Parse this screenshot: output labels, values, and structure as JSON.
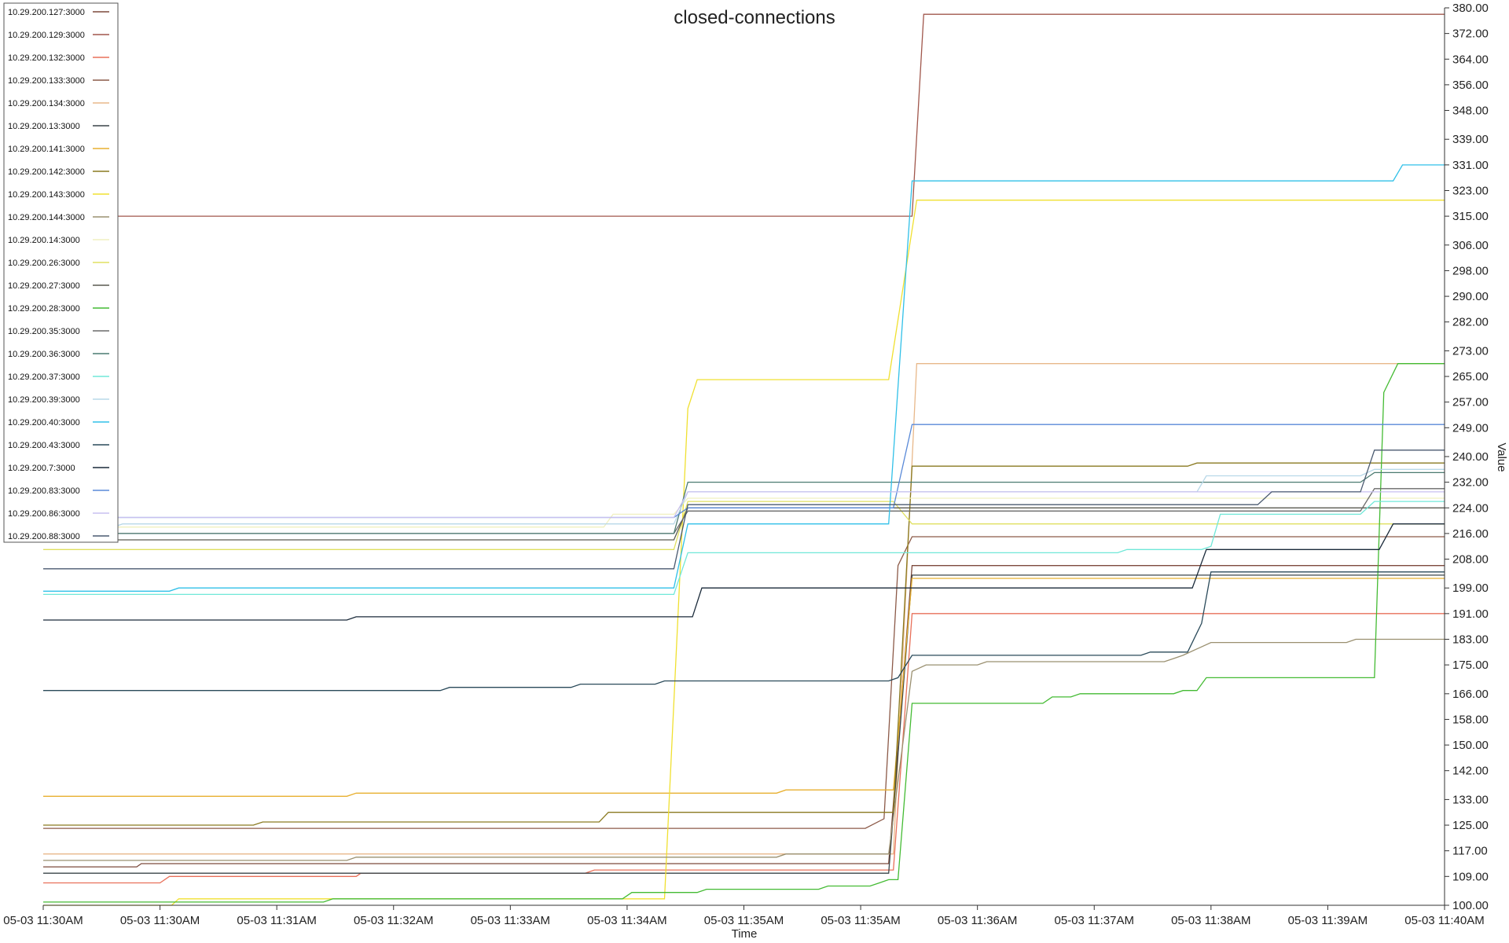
{
  "chart_data": {
    "type": "line",
    "title": "closed-connections",
    "xlabel": "Time",
    "ylabel": "Value",
    "xlim": [
      0,
      600
    ],
    "ylim": [
      100,
      380
    ],
    "x_ticks": [
      {
        "t": 0,
        "label": "05-03 11:30AM"
      },
      {
        "t": 50,
        "label": "05-03 11:30AM"
      },
      {
        "t": 100,
        "label": "05-03 11:31AM"
      },
      {
        "t": 150,
        "label": "05-03 11:32AM"
      },
      {
        "t": 200,
        "label": "05-03 11:33AM"
      },
      {
        "t": 250,
        "label": "05-03 11:34AM"
      },
      {
        "t": 300,
        "label": "05-03 11:35AM"
      },
      {
        "t": 350,
        "label": "05-03 11:35AM"
      },
      {
        "t": 400,
        "label": "05-03 11:36AM"
      },
      {
        "t": 450,
        "label": "05-03 11:37AM"
      },
      {
        "t": 500,
        "label": "05-03 11:38AM"
      },
      {
        "t": 550,
        "label": "05-03 11:39AM"
      },
      {
        "t": 600,
        "label": "05-03 11:40AM"
      }
    ],
    "y_ticks": [
      100.0,
      109.0,
      117.0,
      125.0,
      133.0,
      142.0,
      150.0,
      158.0,
      166.0,
      175.0,
      183.0,
      191.0,
      199.0,
      208.0,
      216.0,
      224.0,
      232.0,
      240.0,
      249.0,
      257.0,
      265.0,
      273.0,
      282.0,
      290.0,
      298.0,
      306.0,
      315.0,
      323.0,
      331.0,
      339.0,
      348.0,
      356.0,
      364.0,
      372.0,
      380.0
    ],
    "y_tick_labels": [
      "100.00",
      "109.00",
      "117.00",
      "125.00",
      "133.00",
      "142.00",
      "150.00",
      "158.00",
      "166.00",
      "175.00",
      "183.00",
      "191.00",
      "199.00",
      "208.00",
      "216.00",
      "224.00",
      "232.00",
      "240.00",
      "249.00",
      "257.00",
      "265.00",
      "273.00",
      "282.00",
      "290.00",
      "298.00",
      "306.00",
      "315.00",
      "323.00",
      "331.00",
      "339.00",
      "348.00",
      "356.00",
      "364.00",
      "372.00",
      "380.00"
    ],
    "grid": false,
    "legend_position": "top-left",
    "series": [
      {
        "name": "10.29.200.127:3000",
        "color": "#7d4a3c",
        "points": [
          [
            0,
            112
          ],
          [
            40,
            112
          ],
          [
            42,
            113
          ],
          [
            362,
            113
          ],
          [
            372,
            206
          ],
          [
            600,
            206
          ]
        ]
      },
      {
        "name": "10.29.200.129:3000",
        "color": "#a0574c",
        "points": [
          [
            0,
            315
          ],
          [
            372,
            315
          ],
          [
            377,
            378
          ],
          [
            600,
            378
          ]
        ]
      },
      {
        "name": "10.29.200.132:3000",
        "color": "#e8705a",
        "points": [
          [
            0,
            107
          ],
          [
            50,
            107
          ],
          [
            54,
            109
          ],
          [
            134,
            109
          ],
          [
            136,
            110
          ],
          [
            232,
            110
          ],
          [
            236,
            111
          ],
          [
            292,
            111
          ],
          [
            364,
            111
          ],
          [
            372,
            191
          ],
          [
            600,
            191
          ]
        ]
      },
      {
        "name": "10.29.200.133:3000",
        "color": "#8c5a48",
        "points": [
          [
            0,
            124
          ],
          [
            352,
            124
          ],
          [
            360,
            127
          ],
          [
            366,
            206
          ],
          [
            372,
            215
          ],
          [
            600,
            215
          ]
        ]
      },
      {
        "name": "10.29.200.134:3000",
        "color": "#e8b88a",
        "points": [
          [
            0,
            116
          ],
          [
            364,
            116
          ],
          [
            374,
            269
          ],
          [
            600,
            269
          ]
        ]
      },
      {
        "name": "10.29.200.13:3000",
        "color": "#3a4448",
        "points": [
          [
            0,
            110
          ],
          [
            362,
            110
          ],
          [
            372,
            203
          ],
          [
            600,
            203
          ]
        ]
      },
      {
        "name": "10.29.200.141:3000",
        "color": "#e8b030",
        "points": [
          [
            0,
            134
          ],
          [
            130,
            134
          ],
          [
            134,
            135
          ],
          [
            314,
            135
          ],
          [
            318,
            136
          ],
          [
            364,
            136
          ],
          [
            372,
            202
          ],
          [
            600,
            202
          ]
        ]
      },
      {
        "name": "10.29.200.142:3000",
        "color": "#8a7a20",
        "points": [
          [
            0,
            125
          ],
          [
            90,
            125
          ],
          [
            94,
            126
          ],
          [
            238,
            126
          ],
          [
            242,
            129
          ],
          [
            364,
            129
          ],
          [
            372,
            237
          ],
          [
            490,
            237
          ],
          [
            494,
            238
          ],
          [
            600,
            238
          ]
        ]
      },
      {
        "name": "10.29.200.143:3000",
        "color": "#f0e030",
        "points": [
          [
            0,
            100
          ],
          [
            55,
            100
          ],
          [
            58,
            102
          ],
          [
            266,
            102
          ],
          [
            276,
            255
          ],
          [
            280,
            264
          ],
          [
            362,
            264
          ],
          [
            374,
            320
          ],
          [
            600,
            320
          ]
        ]
      },
      {
        "name": "10.29.200.144:3000",
        "color": "#9a9070",
        "points": [
          [
            0,
            114
          ],
          [
            130,
            114
          ],
          [
            134,
            115
          ],
          [
            314,
            115
          ],
          [
            318,
            116
          ],
          [
            362,
            116
          ],
          [
            372,
            173
          ],
          [
            378,
            175
          ],
          [
            400,
            175
          ],
          [
            404,
            176
          ],
          [
            480,
            176
          ],
          [
            484,
            177
          ],
          [
            488,
            178
          ],
          [
            500,
            182
          ],
          [
            558,
            182
          ],
          [
            562,
            183
          ],
          [
            600,
            183
          ]
        ]
      },
      {
        "name": "10.29.200.14:3000",
        "color": "#f0f0c0",
        "points": [
          [
            0,
            218
          ],
          [
            240,
            218
          ],
          [
            244,
            222
          ],
          [
            270,
            222
          ],
          [
            276,
            227
          ],
          [
            600,
            227
          ]
        ]
      },
      {
        "name": "10.29.200.26:3000",
        "color": "#e0e060",
        "points": [
          [
            0,
            211
          ],
          [
            270,
            211
          ],
          [
            276,
            226
          ],
          [
            364,
            226
          ],
          [
            372,
            219
          ],
          [
            600,
            219
          ]
        ]
      },
      {
        "name": "10.29.200.27:3000",
        "color": "#5a5a50",
        "points": [
          [
            0,
            214
          ],
          [
            270,
            214
          ],
          [
            276,
            224
          ],
          [
            600,
            224
          ]
        ]
      },
      {
        "name": "10.29.200.28:3000",
        "color": "#44bb33",
        "points": [
          [
            0,
            101
          ],
          [
            120,
            101
          ],
          [
            124,
            102
          ],
          [
            248,
            102
          ],
          [
            252,
            104
          ],
          [
            280,
            104
          ],
          [
            284,
            105
          ],
          [
            332,
            105
          ],
          [
            336,
            106
          ],
          [
            354,
            106
          ],
          [
            358,
            107
          ],
          [
            362,
            108
          ],
          [
            366,
            108
          ],
          [
            372,
            163
          ],
          [
            428,
            163
          ],
          [
            432,
            165
          ],
          [
            440,
            165
          ],
          [
            444,
            166
          ],
          [
            484,
            166
          ],
          [
            488,
            167
          ],
          [
            494,
            167
          ],
          [
            498,
            171
          ],
          [
            570,
            171
          ],
          [
            574,
            260
          ],
          [
            580,
            269
          ],
          [
            600,
            269
          ]
        ]
      },
      {
        "name": "10.29.200.35:3000",
        "color": "#6a6a6a",
        "points": [
          [
            0,
            216
          ],
          [
            270,
            216
          ],
          [
            276,
            223
          ],
          [
            564,
            223
          ],
          [
            570,
            230
          ],
          [
            600,
            230
          ]
        ]
      },
      {
        "name": "10.29.200.36:3000",
        "color": "#4a7a70",
        "points": [
          [
            0,
            216
          ],
          [
            270,
            216
          ],
          [
            276,
            232
          ],
          [
            564,
            232
          ],
          [
            570,
            235
          ],
          [
            600,
            235
          ]
        ]
      },
      {
        "name": "10.29.200.37:3000",
        "color": "#70e8d8",
        "points": [
          [
            0,
            197
          ],
          [
            270,
            197
          ],
          [
            276,
            210
          ],
          [
            460,
            210
          ],
          [
            464,
            211
          ],
          [
            496,
            211
          ],
          [
            500,
            212
          ],
          [
            504,
            222
          ],
          [
            564,
            222
          ],
          [
            570,
            226
          ],
          [
            600,
            226
          ]
        ]
      },
      {
        "name": "10.29.200.39:3000",
        "color": "#b8d8e8",
        "points": [
          [
            0,
            218
          ],
          [
            30,
            218
          ],
          [
            34,
            219
          ],
          [
            270,
            219
          ],
          [
            276,
            229
          ],
          [
            494,
            229
          ],
          [
            498,
            234
          ],
          [
            564,
            234
          ],
          [
            570,
            236
          ],
          [
            600,
            236
          ]
        ]
      },
      {
        "name": "10.29.200.40:3000",
        "color": "#30c0e8",
        "points": [
          [
            0,
            198
          ],
          [
            54,
            198
          ],
          [
            58,
            199
          ],
          [
            270,
            199
          ],
          [
            276,
            219
          ],
          [
            362,
            219
          ],
          [
            372,
            326
          ],
          [
            578,
            326
          ],
          [
            582,
            331
          ],
          [
            600,
            331
          ]
        ]
      },
      {
        "name": "10.29.200.43:3000",
        "color": "#2a4a5a",
        "points": [
          [
            0,
            167
          ],
          [
            170,
            167
          ],
          [
            174,
            168
          ],
          [
            226,
            168
          ],
          [
            230,
            169
          ],
          [
            262,
            169
          ],
          [
            266,
            170
          ],
          [
            362,
            170
          ],
          [
            366,
            171
          ],
          [
            372,
            178
          ],
          [
            470,
            178
          ],
          [
            474,
            179
          ],
          [
            490,
            179
          ],
          [
            496,
            188
          ],
          [
            500,
            204
          ],
          [
            600,
            204
          ]
        ]
      },
      {
        "name": "10.29.200.7:3000",
        "color": "#1a2a3a",
        "points": [
          [
            0,
            189
          ],
          [
            130,
            189
          ],
          [
            134,
            190
          ],
          [
            278,
            190
          ],
          [
            282,
            199
          ],
          [
            492,
            199
          ],
          [
            498,
            211
          ],
          [
            572,
            211
          ],
          [
            578,
            219
          ],
          [
            600,
            219
          ]
        ]
      },
      {
        "name": "10.29.200.83:3000",
        "color": "#5a8ad8",
        "points": [
          [
            0,
            221
          ],
          [
            270,
            221
          ],
          [
            276,
            224
          ],
          [
            364,
            224
          ],
          [
            372,
            250
          ],
          [
            600,
            250
          ]
        ]
      },
      {
        "name": "10.29.200.86:3000",
        "color": "#c8c0f0",
        "points": [
          [
            0,
            221
          ],
          [
            270,
            221
          ],
          [
            276,
            229
          ],
          [
            600,
            229
          ]
        ]
      },
      {
        "name": "10.29.200.88:3000",
        "color": "#4a5a70",
        "points": [
          [
            0,
            205
          ],
          [
            270,
            205
          ],
          [
            276,
            225
          ],
          [
            520,
            225
          ],
          [
            526,
            229
          ],
          [
            564,
            229
          ],
          [
            570,
            242
          ],
          [
            600,
            242
          ]
        ]
      }
    ]
  }
}
